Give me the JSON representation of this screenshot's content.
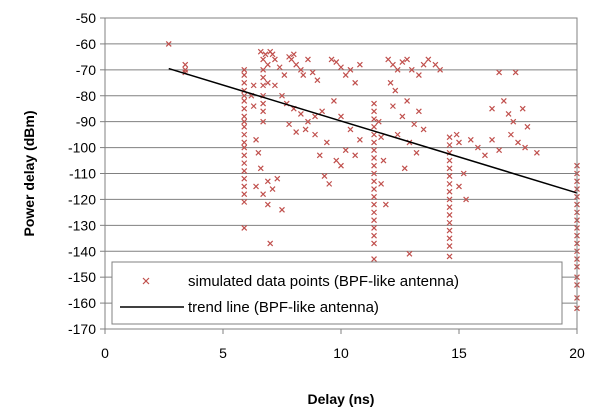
{
  "chart_data": {
    "type": "scatter",
    "title": "",
    "xlabel": "Delay (ns)",
    "ylabel": "Power delay (dBm)",
    "xlim": [
      0,
      20
    ],
    "ylim": [
      -170,
      -50
    ],
    "x_ticks": [
      0,
      5,
      10,
      15,
      20
    ],
    "y_ticks": [
      -50,
      -60,
      -70,
      -80,
      -90,
      -100,
      -110,
      -120,
      -130,
      -140,
      -150,
      -160,
      -170
    ],
    "grid": "horizontal",
    "legend_position": "bottom-center",
    "colors": {
      "points": "#c0504d",
      "trend": "#000000",
      "grid": "#808080"
    },
    "series": [
      {
        "name": "simulated data points (BPF-like antenna)",
        "kind": "scatter",
        "marker": "x",
        "points": [
          [
            2.7,
            -60
          ],
          [
            3.4,
            -68
          ],
          [
            3.4,
            -70
          ],
          [
            3.4,
            -71
          ],
          [
            5.9,
            -70
          ],
          [
            5.9,
            -72
          ],
          [
            5.9,
            -75
          ],
          [
            5.9,
            -78
          ],
          [
            5.9,
            -80
          ],
          [
            5.9,
            -82
          ],
          [
            5.9,
            -85
          ],
          [
            5.9,
            -88
          ],
          [
            5.9,
            -90
          ],
          [
            5.9,
            -92
          ],
          [
            5.9,
            -95
          ],
          [
            5.9,
            -98
          ],
          [
            5.9,
            -100
          ],
          [
            5.9,
            -103
          ],
          [
            5.9,
            -106
          ],
          [
            5.9,
            -109
          ],
          [
            5.9,
            -112
          ],
          [
            5.9,
            -115
          ],
          [
            5.9,
            -118
          ],
          [
            5.9,
            -121
          ],
          [
            5.9,
            -131
          ],
          [
            6.2,
            -80
          ],
          [
            6.3,
            -84
          ],
          [
            6.3,
            -76
          ],
          [
            6.4,
            -97
          ],
          [
            6.5,
            -102
          ],
          [
            6.4,
            -115
          ],
          [
            6.6,
            -63
          ],
          [
            6.7,
            -66
          ],
          [
            6.7,
            -70
          ],
          [
            6.7,
            -73
          ],
          [
            6.7,
            -76
          ],
          [
            6.7,
            -80
          ],
          [
            6.7,
            -83
          ],
          [
            6.7,
            -86
          ],
          [
            6.7,
            -90
          ],
          [
            6.8,
            -64
          ],
          [
            6.9,
            -68
          ],
          [
            6.9,
            -75
          ],
          [
            7.0,
            -63
          ],
          [
            7.1,
            -64
          ],
          [
            7.2,
            -66
          ],
          [
            7.4,
            -69
          ],
          [
            7.6,
            -72
          ],
          [
            7.8,
            -65
          ],
          [
            7.9,
            -66
          ],
          [
            8.0,
            -64
          ],
          [
            8.1,
            -68
          ],
          [
            8.3,
            -70
          ],
          [
            8.4,
            -72
          ],
          [
            8.6,
            -66
          ],
          [
            8.8,
            -71
          ],
          [
            9.0,
            -74
          ],
          [
            7.2,
            -76
          ],
          [
            7.5,
            -80
          ],
          [
            7.7,
            -83
          ],
          [
            8.0,
            -85
          ],
          [
            8.3,
            -87
          ],
          [
            8.6,
            -90
          ],
          [
            8.9,
            -88
          ],
          [
            9.2,
            -86
          ],
          [
            6.9,
            -113
          ],
          [
            6.6,
            -108
          ],
          [
            6.7,
            -118
          ],
          [
            6.9,
            -122
          ],
          [
            7.1,
            -116
          ],
          [
            7.3,
            -112
          ],
          [
            7.5,
            -124
          ],
          [
            7.0,
            -137
          ],
          [
            7.8,
            -91
          ],
          [
            8.1,
            -94
          ],
          [
            8.5,
            -93
          ],
          [
            8.9,
            -95
          ],
          [
            9.1,
            -103
          ],
          [
            9.3,
            -111
          ],
          [
            9.5,
            -114
          ],
          [
            9.8,
            -105
          ],
          [
            10.0,
            -107
          ],
          [
            9.4,
            -98
          ],
          [
            9.7,
            -82
          ],
          [
            10.0,
            -88
          ],
          [
            10.2,
            -101
          ],
          [
            10.6,
            -103
          ],
          [
            10.8,
            -97
          ],
          [
            10.4,
            -93
          ],
          [
            9.6,
            -66
          ],
          [
            9.8,
            -67
          ],
          [
            10.0,
            -69
          ],
          [
            10.2,
            -72
          ],
          [
            10.4,
            -70
          ],
          [
            10.6,
            -75
          ],
          [
            10.8,
            -68
          ],
          [
            11.4,
            -83
          ],
          [
            11.4,
            -86
          ],
          [
            11.4,
            -89
          ],
          [
            11.4,
            -92
          ],
          [
            11.4,
            -95
          ],
          [
            11.4,
            -98
          ],
          [
            11.4,
            -101
          ],
          [
            11.4,
            -104
          ],
          [
            11.4,
            -107
          ],
          [
            11.4,
            -110
          ],
          [
            11.4,
            -113
          ],
          [
            11.4,
            -116
          ],
          [
            11.4,
            -119
          ],
          [
            11.4,
            -122
          ],
          [
            11.4,
            -125
          ],
          [
            11.4,
            -128
          ],
          [
            11.4,
            -131
          ],
          [
            11.4,
            -134
          ],
          [
            11.4,
            -137
          ],
          [
            11.4,
            -143
          ],
          [
            11.6,
            -90
          ],
          [
            11.7,
            -96
          ],
          [
            11.8,
            -105
          ],
          [
            11.7,
            -114
          ],
          [
            11.9,
            -122
          ],
          [
            12.1,
            -75
          ],
          [
            12.3,
            -78
          ],
          [
            12.2,
            -84
          ],
          [
            12.4,
            -95
          ],
          [
            12.6,
            -88
          ],
          [
            12.8,
            -82
          ],
          [
            12.9,
            -98
          ],
          [
            13.1,
            -91
          ],
          [
            13.3,
            -86
          ],
          [
            13.5,
            -93
          ],
          [
            13.2,
            -102
          ],
          [
            12.7,
            -108
          ],
          [
            12.9,
            -141
          ],
          [
            12.0,
            -66
          ],
          [
            12.2,
            -68
          ],
          [
            12.4,
            -70
          ],
          [
            12.6,
            -67
          ],
          [
            12.8,
            -66
          ],
          [
            13.0,
            -70
          ],
          [
            13.3,
            -72
          ],
          [
            13.5,
            -68
          ],
          [
            13.7,
            -66
          ],
          [
            14.0,
            -68
          ],
          [
            14.2,
            -70
          ],
          [
            14.6,
            -96
          ],
          [
            14.6,
            -99
          ],
          [
            14.6,
            -102
          ],
          [
            14.6,
            -105
          ],
          [
            14.6,
            -108
          ],
          [
            14.6,
            -111
          ],
          [
            14.6,
            -114
          ],
          [
            14.6,
            -117
          ],
          [
            14.6,
            -120
          ],
          [
            14.6,
            -123
          ],
          [
            14.6,
            -126
          ],
          [
            14.6,
            -129
          ],
          [
            14.6,
            -132
          ],
          [
            14.6,
            -135
          ],
          [
            14.6,
            -138
          ],
          [
            14.6,
            -142
          ],
          [
            14.9,
            -95
          ],
          [
            15.0,
            -98
          ],
          [
            15.2,
            -110
          ],
          [
            15.0,
            -115
          ],
          [
            15.3,
            -120
          ],
          [
            15.5,
            -97
          ],
          [
            15.8,
            -100
          ],
          [
            16.1,
            -103
          ],
          [
            16.4,
            -97
          ],
          [
            16.7,
            -101
          ],
          [
            16.7,
            -71
          ],
          [
            17.4,
            -71
          ],
          [
            16.9,
            -82
          ],
          [
            17.1,
            -87
          ],
          [
            17.3,
            -90
          ],
          [
            17.5,
            -98
          ],
          [
            17.8,
            -100
          ],
          [
            17.2,
            -95
          ],
          [
            17.7,
            -85
          ],
          [
            17.9,
            -92
          ],
          [
            16.4,
            -85
          ],
          [
            18.3,
            -102
          ],
          [
            20.0,
            -107
          ],
          [
            20.0,
            -110
          ],
          [
            20.0,
            -113
          ],
          [
            20.0,
            -116
          ],
          [
            20.0,
            -119
          ],
          [
            20.0,
            -122
          ],
          [
            20.0,
            -125
          ],
          [
            20.0,
            -128
          ],
          [
            20.0,
            -131
          ],
          [
            20.0,
            -134
          ],
          [
            20.0,
            -137
          ],
          [
            20.0,
            -140
          ],
          [
            20.0,
            -143
          ],
          [
            20.0,
            -146
          ],
          [
            20.0,
            -150
          ],
          [
            20.0,
            -153
          ],
          [
            20.0,
            -158
          ],
          [
            20.0,
            -162
          ]
        ]
      },
      {
        "name": "trend line (BPF-like antenna)",
        "kind": "line",
        "points": [
          [
            2.7,
            -69.5
          ],
          [
            20.0,
            -117.5
          ]
        ]
      }
    ]
  }
}
